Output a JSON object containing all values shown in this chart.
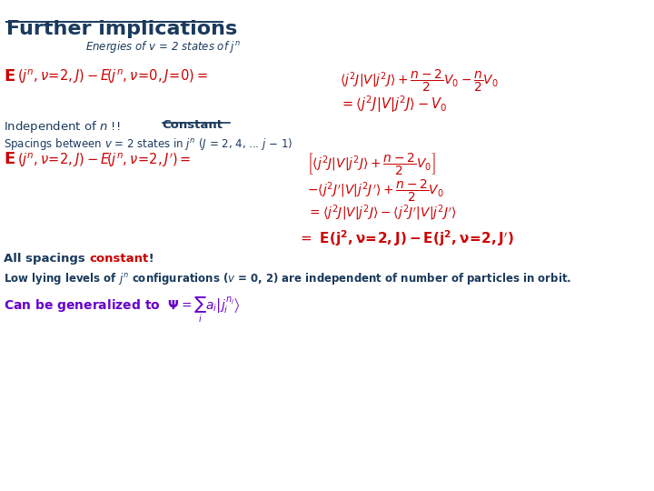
{
  "bg_color": "#ffffff",
  "dark_blue": "#1a3a5c",
  "red": "#cc0000",
  "purple": "#6600cc"
}
